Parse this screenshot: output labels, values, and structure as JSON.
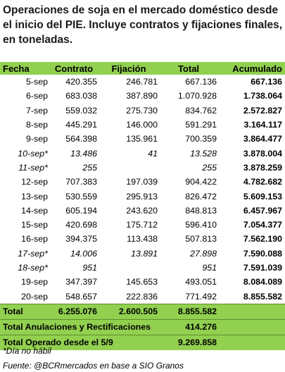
{
  "title": "Operaciones de soja en el mercado doméstico desde el inicio del PIE. Incluye contratos y fijaciones finales, en toneladas.",
  "columns": [
    "Fecha",
    "Contrato",
    "Fijación",
    "Total",
    "Acumulado"
  ],
  "rows": [
    {
      "fecha": "5-sep",
      "contrato": "420.355",
      "fijacion": "246.781",
      "total": "667.136",
      "acumulado": "667.136"
    },
    {
      "fecha": "6-sep",
      "contrato": "683.038",
      "fijacion": "387.890",
      "total": "1.070.928",
      "acumulado": "1.738.064"
    },
    {
      "fecha": "7-sep",
      "contrato": "559.032",
      "fijacion": "275.730",
      "total": "834.762",
      "acumulado": "2.572.827"
    },
    {
      "fecha": "8-sep",
      "contrato": "445.291",
      "fijacion": "146.000",
      "total": "591.291",
      "acumulado": "3.164.117"
    },
    {
      "fecha": "9-sep",
      "contrato": "564.398",
      "fijacion": "135.961",
      "total": "700.359",
      "acumulado": "3.864.477"
    },
    {
      "fecha": "10-sep*",
      "contrato": "13.486",
      "fijacion": "41",
      "total": "13.528",
      "acumulado": "3.878.004"
    },
    {
      "fecha": "11-sep*",
      "contrato": "255",
      "fijacion": "",
      "total": "255",
      "acumulado": "3.878.259"
    },
    {
      "fecha": "12-sep",
      "contrato": "707.383",
      "fijacion": "197.039",
      "total": "904.422",
      "acumulado": "4.782.682"
    },
    {
      "fecha": "13-sep",
      "contrato": "530.559",
      "fijacion": "295.913",
      "total": "826.472",
      "acumulado": "5.609.153"
    },
    {
      "fecha": "14-sep",
      "contrato": "605.194",
      "fijacion": "243.620",
      "total": "848.813",
      "acumulado": "6.457.967"
    },
    {
      "fecha": "15-sep",
      "contrato": "420.698",
      "fijacion": "175.712",
      "total": "596.410",
      "acumulado": "7.054.377"
    },
    {
      "fecha": "16-sep",
      "contrato": "394.375",
      "fijacion": "113.438",
      "total": "507.813",
      "acumulado": "7.562.190"
    },
    {
      "fecha": "17-sep*",
      "contrato": "14.006",
      "fijacion": "13.891",
      "total": "27.898",
      "acumulado": "7.590.088"
    },
    {
      "fecha": "18-sep*",
      "contrato": "951",
      "fijacion": "",
      "total": "951",
      "acumulado": "7.591.039"
    },
    {
      "fecha": "19-sep",
      "contrato": "347.397",
      "fijacion": "145.653",
      "total": "493.051",
      "acumulado": "8.084.089"
    },
    {
      "fecha": "20-sep",
      "contrato": "548.657",
      "fijacion": "222.836",
      "total": "771.492",
      "acumulado": "8.855.582"
    }
  ],
  "totals": {
    "label": "Total",
    "contrato": "6.255.076",
    "fijacion": "2.600.505",
    "total": "8.855.582"
  },
  "anulaciones": {
    "label": "Total Anulaciones y Rectificaciones",
    "value": "414.276"
  },
  "operado": {
    "label": "Total Operado desde el 5/9",
    "value": "9.269.858"
  },
  "note": "*Día no hábil",
  "source": "Fuente: @BCRmercados en base a SIO Granos",
  "colors": {
    "header_bg": "#92d050",
    "text": "#000000"
  }
}
